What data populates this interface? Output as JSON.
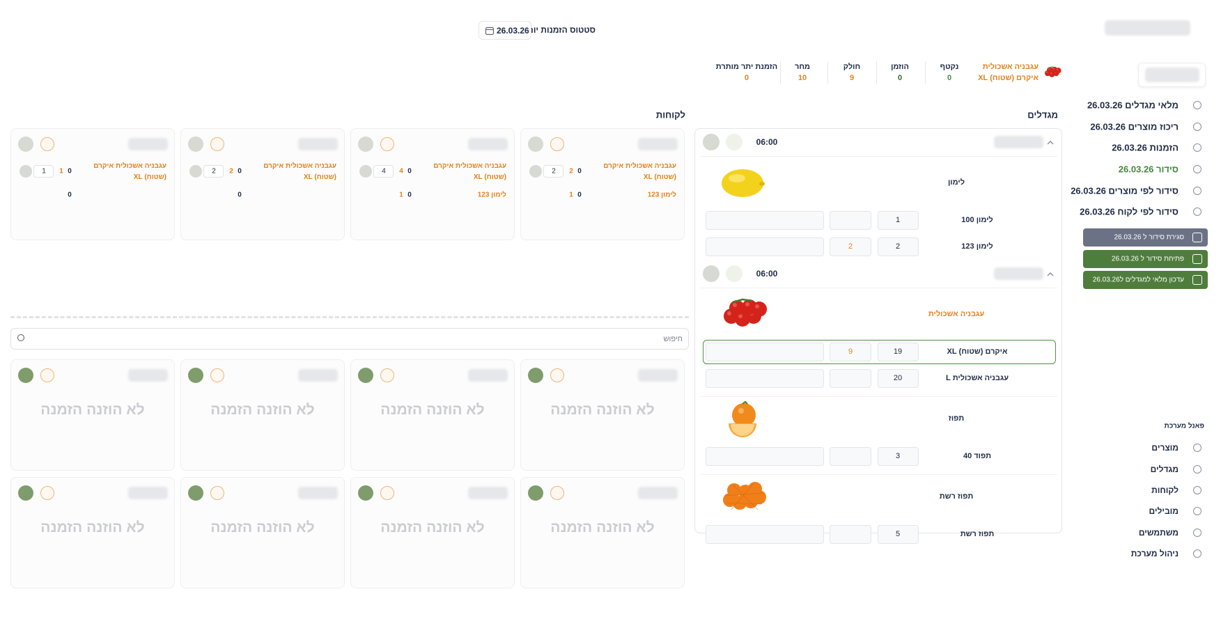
{
  "header": {
    "title": "סטטוס הזמנות יום",
    "date": "26.03.26"
  },
  "summary": {
    "product": "עגבניה אשכולית",
    "variant": "איקרם (שטוח) XL",
    "stats": [
      {
        "label": "נקטף",
        "value": 0,
        "color": "#3f8a3a"
      },
      {
        "label": "הוזמן",
        "value": 0,
        "color": "#2f6b2c"
      },
      {
        "label": "חולק",
        "value": 9,
        "color": "#e8801a"
      },
      {
        "label": "מחר",
        "value": 10,
        "color": "#e8801a"
      },
      {
        "label": "הזמנת יתר מותרת",
        "value": 0,
        "color": "#e8801a"
      }
    ]
  },
  "sidebar": {
    "menu": [
      {
        "label": "מלאי מגדלים 26.03.26"
      },
      {
        "label": "ריכוז מוצרים 26.03.26"
      },
      {
        "label": "הזמנות 26.03.26"
      },
      {
        "label": "סידור 26.03.26",
        "color": "#3f8a3a"
      },
      {
        "label": "סידור לפי מוצרים 26.03.26"
      },
      {
        "label": "סידור לפי לקוח 26.03.26"
      }
    ],
    "actions": [
      {
        "label": "סגירת סידור ל 26.03.26",
        "color": "#6b7285"
      },
      {
        "label": "פתיחת סידור ל 26.03.26",
        "color": "#4f7d3c"
      },
      {
        "label": "עדכון מלאי למגדלים ל26.03.26",
        "color": "#4f7d3c"
      }
    ],
    "admin_title": "פאנל מערכת",
    "admin": [
      "מוצרים",
      "מגדלים",
      "לקוחות",
      "מובילים",
      "משתמשים",
      "ניהול מערכת"
    ]
  },
  "growers": {
    "title": "מגדלים",
    "groups": [
      {
        "time": "06:00",
        "products": [
          {
            "name": "לימון",
            "image": "lemon",
            "rows": [
              {
                "name": "לימון 100",
                "qty": 1
              },
              {
                "name": "לימון 123",
                "qty": 2,
                "extra": 2
              }
            ]
          }
        ]
      },
      {
        "time": "06:00",
        "products": [
          {
            "name": "עגבניה אשכולית",
            "image": "tomato",
            "color": "#e8801a",
            "rows": [
              {
                "name": "איקרם (שטוח) XL",
                "qty": 19,
                "extra": 9,
                "selected": true
              },
              {
                "name": "עגבניה אשכולית L",
                "qty": 20
              }
            ]
          },
          {
            "name": "תפוז",
            "image": "orange",
            "rows": [
              {
                "name": "תפוד 40",
                "qty": 3
              }
            ]
          },
          {
            "name": "תפוז רשת",
            "image": "orange-net",
            "rows": [
              {
                "name": "תפוז רשת",
                "qty": 5
              }
            ]
          }
        ]
      }
    ]
  },
  "customers": {
    "title": "לקוחות",
    "search_placeholder": "חיפוש",
    "cards": [
      {
        "orders": [
          {
            "name": "עגבניה אשכולית איקרם (שטוח) XL",
            "delivered": 0,
            "qty": 2,
            "input": 2
          },
          {
            "name": "לימון 123",
            "delivered": 0,
            "qty": 1
          }
        ]
      },
      {
        "orders": [
          {
            "name": "עגבניה אשכולית איקרם (שטוח) XL",
            "delivered": 0,
            "qty": 4,
            "input": 4
          },
          {
            "name": "לימון 123",
            "delivered": 0,
            "qty": 1
          }
        ]
      },
      {
        "orders": [
          {
            "name": "עגבניה אשכולית איקרם (שטוח) XL",
            "delivered": 0,
            "qty": 2,
            "input": 2
          },
          {
            "delivered": 0
          }
        ]
      },
      {
        "orders": [
          {
            "name": "עגבניה אשכולית איקרם (שטוח) XL",
            "delivered": 0,
            "qty": 1,
            "input": 1
          },
          {
            "delivered": 0
          }
        ]
      }
    ],
    "empty_cards": [
      "לא הוזנה הזמנה",
      "לא הוזנה הזמנה",
      "לא הוזנה הזמנה",
      "לא הוזנה הזמנה",
      "לא הוזנה הזמנה",
      "לא הוזנה הזמנה",
      "לא הוזנה הזמנה",
      "לא הוזנה הזמנה"
    ]
  }
}
